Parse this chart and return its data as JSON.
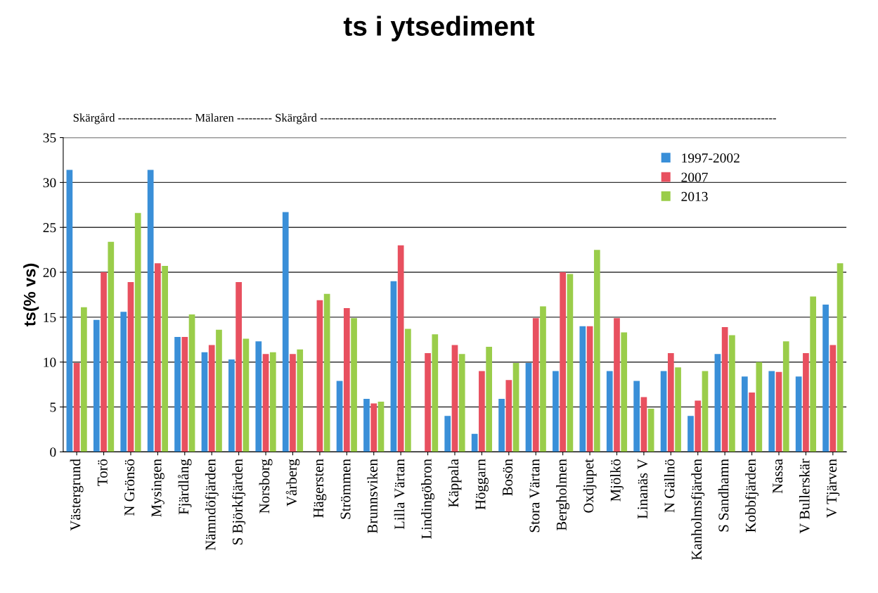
{
  "chart_data": {
    "type": "bar",
    "title": "ts i ytsediment",
    "ylabel": "ts(% vs)",
    "annotations": [
      "Skärgård ------------------- Mälaren --------- Skärgård ---------------------------------------------------------------------------------------------------------------------"
    ],
    "categories": [
      "Västergrund",
      "Torö",
      "N Grönsö",
      "Mysingen",
      "Fjärdlång",
      "Nämndöfjärden",
      "S Björkfjärden",
      "Norsborg",
      "Vårberg",
      "Hägersten",
      "Strömmen",
      "Brunnsviken",
      "Lilla Värtan",
      "Lindingöbron",
      "Käppala",
      "Höggarn",
      "Bosön",
      "Stora Värtan",
      "Bergholmen",
      "Oxdjupet",
      "Mjölkö",
      "Linanäs V",
      "N Gällnö",
      "Kanholmsfjärden",
      "S Sandhamn",
      "Kobbfjärden",
      "Nassa",
      "V Bullerskär",
      "V Tjärven"
    ],
    "series": [
      {
        "name": "1997-2002",
        "color": "#3a8fd8",
        "values": [
          31.4,
          14.7,
          15.6,
          31.4,
          12.8,
          11.1,
          10.3,
          12.3,
          26.7,
          null,
          7.9,
          5.9,
          19.0,
          null,
          4.0,
          2.0,
          5.9,
          9.9,
          9.0,
          14.0,
          9.0,
          7.9,
          9.0,
          4.0,
          10.9,
          8.4,
          9.0,
          8.4,
          16.4
        ]
      },
      {
        "name": "2007",
        "color": "#e8505f",
        "values": [
          9.9,
          20.0,
          18.9,
          21.0,
          12.8,
          11.9,
          18.9,
          10.9,
          10.9,
          16.9,
          16.0,
          5.4,
          23.0,
          11.0,
          11.9,
          9.0,
          8.0,
          14.9,
          20.0,
          14.0,
          14.9,
          6.1,
          11.0,
          5.7,
          13.9,
          6.6,
          8.9,
          11.0,
          11.9
        ]
      },
      {
        "name": "2013",
        "color": "#9acd4a",
        "values": [
          16.1,
          23.4,
          26.6,
          20.7,
          15.3,
          13.6,
          12.6,
          11.1,
          11.4,
          17.6,
          14.9,
          5.6,
          13.7,
          13.1,
          10.9,
          11.7,
          9.9,
          16.2,
          19.8,
          22.5,
          13.3,
          4.8,
          9.4,
          9.0,
          13.0,
          10.0,
          12.3,
          17.3,
          21.0
        ]
      }
    ],
    "ylim": [
      0,
      35
    ],
    "yticks": [
      0,
      5,
      10,
      15,
      20,
      25,
      30,
      35
    ],
    "grid": "y",
    "legend": "top right"
  }
}
